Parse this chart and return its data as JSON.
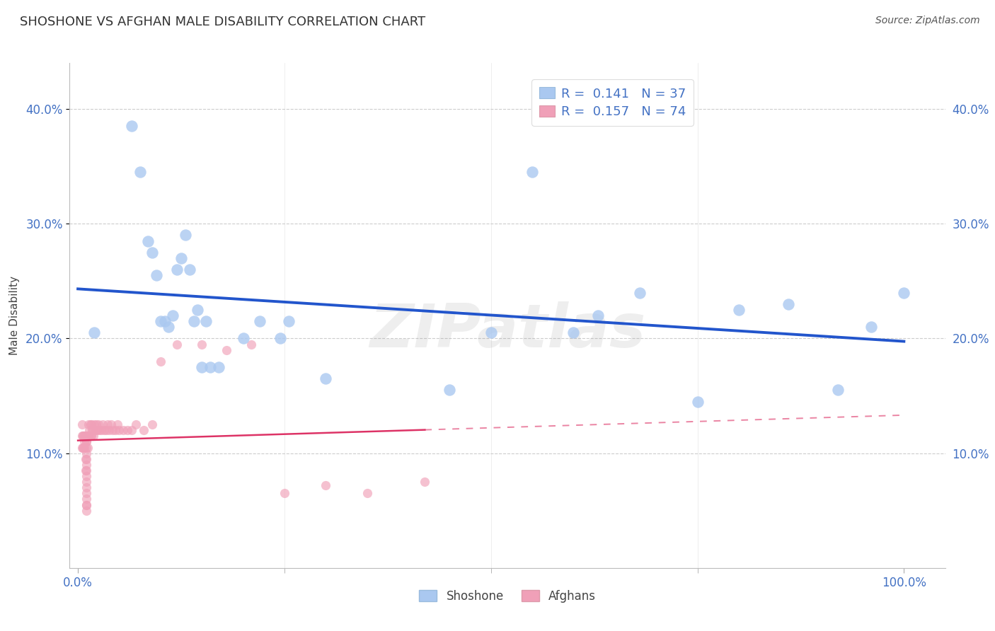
{
  "title": "SHOSHONE VS AFGHAN MALE DISABILITY CORRELATION CHART",
  "source": "Source: ZipAtlas.com",
  "ylabel": "Male Disability",
  "shoshone_color": "#aac8f0",
  "afghan_color": "#f0a0b8",
  "shoshone_line_color": "#2255cc",
  "afghan_line_color": "#dd3366",
  "watermark": "ZIPatlas",
  "R1": "0.141",
  "N1": "37",
  "R2": "0.157",
  "N2": "74",
  "ytick_values": [
    0.1,
    0.2,
    0.3,
    0.4
  ],
  "ytick_labels": [
    "10.0%",
    "20.0%",
    "30.0%",
    "40.0%"
  ],
  "shoshone_x": [
    0.02,
    0.065,
    0.075,
    0.085,
    0.09,
    0.095,
    0.1,
    0.105,
    0.11,
    0.115,
    0.12,
    0.125,
    0.13,
    0.135,
    0.14,
    0.145,
    0.15,
    0.155,
    0.16,
    0.17,
    0.2,
    0.22,
    0.245,
    0.255,
    0.3,
    0.45,
    0.5,
    0.55,
    0.6,
    0.63,
    0.68,
    0.75,
    0.8,
    0.86,
    0.92,
    0.96,
    1.0
  ],
  "shoshone_y": [
    0.205,
    0.385,
    0.345,
    0.285,
    0.275,
    0.255,
    0.215,
    0.215,
    0.21,
    0.22,
    0.26,
    0.27,
    0.29,
    0.26,
    0.215,
    0.225,
    0.175,
    0.215,
    0.175,
    0.175,
    0.2,
    0.215,
    0.2,
    0.215,
    0.165,
    0.155,
    0.205,
    0.345,
    0.205,
    0.22,
    0.24,
    0.145,
    0.225,
    0.23,
    0.155,
    0.21,
    0.24
  ],
  "afghan_x": [
    0.005,
    0.005,
    0.005,
    0.006,
    0.006,
    0.007,
    0.007,
    0.008,
    0.008,
    0.008,
    0.009,
    0.009,
    0.01,
    0.01,
    0.01,
    0.01,
    0.01,
    0.01,
    0.01,
    0.01,
    0.01,
    0.01,
    0.01,
    0.01,
    0.01,
    0.01,
    0.01,
    0.01,
    0.01,
    0.01,
    0.012,
    0.012,
    0.013,
    0.013,
    0.014,
    0.015,
    0.015,
    0.016,
    0.016,
    0.017,
    0.018,
    0.019,
    0.02,
    0.021,
    0.022,
    0.023,
    0.025,
    0.026,
    0.028,
    0.03,
    0.032,
    0.034,
    0.036,
    0.038,
    0.04,
    0.042,
    0.045,
    0.048,
    0.05,
    0.055,
    0.06,
    0.065,
    0.07,
    0.08,
    0.09,
    0.1,
    0.12,
    0.15,
    0.18,
    0.21,
    0.25,
    0.3,
    0.35,
    0.42
  ],
  "afghan_y": [
    0.125,
    0.115,
    0.105,
    0.115,
    0.105,
    0.115,
    0.105,
    0.115,
    0.11,
    0.105,
    0.085,
    0.095,
    0.115,
    0.11,
    0.115,
    0.105,
    0.115,
    0.11,
    0.1,
    0.095,
    0.09,
    0.085,
    0.08,
    0.075,
    0.07,
    0.065,
    0.06,
    0.055,
    0.05,
    0.055,
    0.115,
    0.105,
    0.125,
    0.115,
    0.12,
    0.125,
    0.115,
    0.125,
    0.115,
    0.12,
    0.12,
    0.115,
    0.125,
    0.12,
    0.125,
    0.12,
    0.125,
    0.12,
    0.12,
    0.125,
    0.12,
    0.12,
    0.125,
    0.12,
    0.125,
    0.12,
    0.12,
    0.125,
    0.12,
    0.12,
    0.12,
    0.12,
    0.125,
    0.12,
    0.125,
    0.18,
    0.195,
    0.195,
    0.19,
    0.195,
    0.065,
    0.072,
    0.065,
    0.075
  ]
}
